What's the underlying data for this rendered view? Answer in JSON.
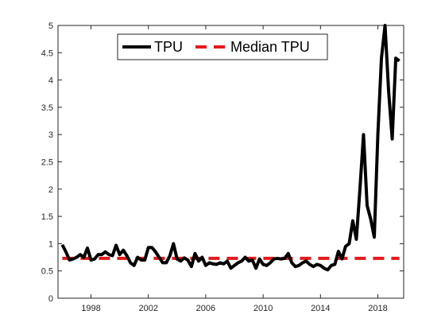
{
  "chart_data": {
    "type": "line",
    "title": "",
    "xlabel": "",
    "ylabel": "",
    "xlim": [
      1995.7,
      2019.8
    ],
    "ylim": [
      0,
      5
    ],
    "xticks": [
      1998,
      2002,
      2006,
      2010,
      2014,
      2018
    ],
    "yticks": [
      0,
      0.5,
      1,
      1.5,
      2,
      2.5,
      3,
      3.5,
      4,
      4.5,
      5
    ],
    "ytick_labels": [
      "0",
      "0.5",
      "1",
      "1.5",
      "2",
      "2.5",
      "3",
      "3.5",
      "4",
      "4.5",
      "5"
    ],
    "grid": false,
    "legend": {
      "placement": "top-left",
      "orientation": "horizontal"
    },
    "series": [
      {
        "name": "TPU",
        "color": "#000000",
        "style": "solid",
        "x": [
          1996.0,
          1996.25,
          1996.5,
          1996.75,
          1997.0,
          1997.25,
          1997.5,
          1997.75,
          1998.0,
          1998.25,
          1998.5,
          1998.75,
          1999.0,
          1999.25,
          1999.5,
          1999.75,
          2000.0,
          2000.25,
          2000.5,
          2000.75,
          2001.0,
          2001.25,
          2001.5,
          2001.75,
          2002.0,
          2002.25,
          2002.5,
          2002.75,
          2003.0,
          2003.25,
          2003.5,
          2003.75,
          2004.0,
          2004.25,
          2004.5,
          2004.75,
          2005.0,
          2005.25,
          2005.5,
          2005.75,
          2006.0,
          2006.25,
          2006.5,
          2006.75,
          2007.0,
          2007.25,
          2007.5,
          2007.75,
          2008.0,
          2008.25,
          2008.5,
          2008.75,
          2009.0,
          2009.25,
          2009.5,
          2009.75,
          2010.0,
          2010.25,
          2010.5,
          2010.75,
          2011.0,
          2011.25,
          2011.5,
          2011.75,
          2012.0,
          2012.25,
          2012.5,
          2012.75,
          2013.0,
          2013.25,
          2013.5,
          2013.75,
          2014.0,
          2014.25,
          2014.5,
          2014.75,
          2015.0,
          2015.25,
          2015.5,
          2015.75,
          2016.0,
          2016.25,
          2016.5,
          2016.75,
          2017.0,
          2017.25,
          2017.5,
          2017.75,
          2018.0,
          2018.25,
          2018.5,
          2018.75,
          2019.0,
          2019.25,
          2019.5
        ],
        "values": [
          0.98,
          0.85,
          0.7,
          0.72,
          0.75,
          0.8,
          0.75,
          0.92,
          0.7,
          0.72,
          0.8,
          0.8,
          0.85,
          0.8,
          0.78,
          0.97,
          0.8,
          0.88,
          0.78,
          0.65,
          0.6,
          0.75,
          0.7,
          0.7,
          0.93,
          0.93,
          0.85,
          0.75,
          0.65,
          0.65,
          0.78,
          1.0,
          0.72,
          0.68,
          0.74,
          0.7,
          0.58,
          0.82,
          0.68,
          0.75,
          0.6,
          0.65,
          0.63,
          0.62,
          0.65,
          0.63,
          0.68,
          0.55,
          0.6,
          0.65,
          0.68,
          0.75,
          0.68,
          0.7,
          0.55,
          0.72,
          0.62,
          0.6,
          0.65,
          0.72,
          0.73,
          0.72,
          0.73,
          0.82,
          0.65,
          0.58,
          0.6,
          0.65,
          0.68,
          0.62,
          0.58,
          0.62,
          0.6,
          0.55,
          0.52,
          0.6,
          0.62,
          0.86,
          0.72,
          0.95,
          1.0,
          1.42,
          1.08,
          2.0,
          3.0,
          1.7,
          1.45,
          1.12,
          3.0,
          4.4,
          5.0,
          3.8,
          2.92,
          4.4,
          4.35
        ]
      },
      {
        "name": "Median TPU",
        "color": "#e31a1c",
        "style": "dashed",
        "x": [
          1996.0,
          2019.5
        ],
        "values": [
          0.73,
          0.73
        ]
      }
    ]
  }
}
